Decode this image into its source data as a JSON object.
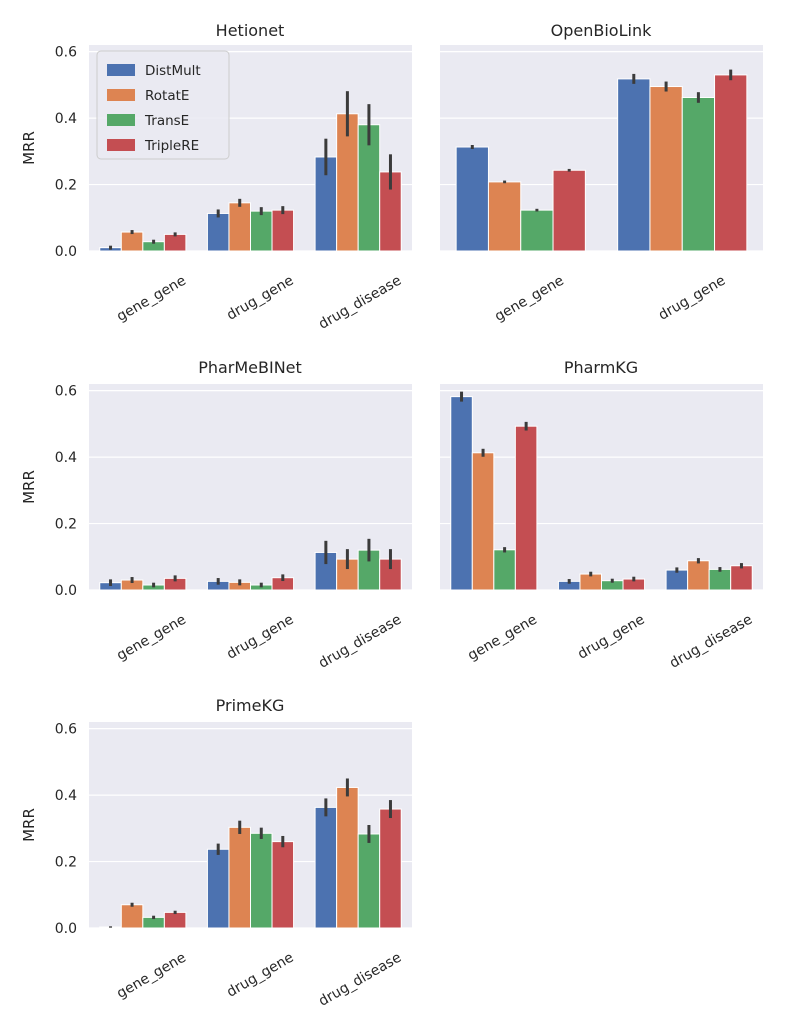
{
  "chart_data": [
    {
      "type": "bar",
      "title": "Hetionet",
      "ylabel": "MRR",
      "ylim": [
        0,
        0.62
      ],
      "yticks": [
        "0.0",
        "0.2",
        "0.4",
        "0.6"
      ],
      "categories": [
        "gene_gene",
        "drug_gene",
        "drug_disease"
      ],
      "legend": "top-left",
      "series": [
        {
          "name": "DistMult",
          "values": [
            0.01,
            0.113,
            0.283
          ],
          "err": [
            0.006,
            0.012,
            0.055
          ]
        },
        {
          "name": "RotatE",
          "values": [
            0.057,
            0.145,
            0.413
          ],
          "err": [
            0.006,
            0.012,
            0.068
          ]
        },
        {
          "name": "TransE",
          "values": [
            0.028,
            0.12,
            0.38
          ],
          "err": [
            0.006,
            0.012,
            0.062
          ]
        },
        {
          "name": "TripleRE",
          "values": [
            0.05,
            0.123,
            0.238
          ],
          "err": [
            0.006,
            0.012,
            0.053
          ]
        }
      ]
    },
    {
      "type": "bar",
      "title": "OpenBioLink",
      "ylabel": "",
      "ylim": [
        0,
        0.62
      ],
      "yticks": [],
      "categories": [
        "gene_gene",
        "drug_gene"
      ],
      "series": [
        {
          "name": "DistMult",
          "values": [
            0.313,
            0.518
          ],
          "err": [
            0.006,
            0.015
          ]
        },
        {
          "name": "RotatE",
          "values": [
            0.208,
            0.495
          ],
          "err": [
            0.004,
            0.015
          ]
        },
        {
          "name": "TransE",
          "values": [
            0.123,
            0.462
          ],
          "err": [
            0.004,
            0.016
          ]
        },
        {
          "name": "TripleRE",
          "values": [
            0.243,
            0.53
          ],
          "err": [
            0.004,
            0.016
          ]
        }
      ]
    },
    {
      "type": "bar",
      "title": "PharMeBINet",
      "ylabel": "MRR",
      "ylim": [
        0,
        0.62
      ],
      "yticks": [
        "0.0",
        "0.2",
        "0.4",
        "0.6"
      ],
      "categories": [
        "gene_gene",
        "drug_gene",
        "drug_disease"
      ],
      "series": [
        {
          "name": "DistMult",
          "values": [
            0.022,
            0.026,
            0.113
          ],
          "err": [
            0.01,
            0.01,
            0.035
          ]
        },
        {
          "name": "RotatE",
          "values": [
            0.03,
            0.023,
            0.093
          ],
          "err": [
            0.009,
            0.009,
            0.03
          ]
        },
        {
          "name": "TransE",
          "values": [
            0.015,
            0.015,
            0.12
          ],
          "err": [
            0.007,
            0.007,
            0.034
          ]
        },
        {
          "name": "TripleRE",
          "values": [
            0.035,
            0.037,
            0.093
          ],
          "err": [
            0.009,
            0.01,
            0.03
          ]
        }
      ]
    },
    {
      "type": "bar",
      "title": "PharmKG",
      "ylabel": "",
      "ylim": [
        0,
        0.62
      ],
      "yticks": [],
      "categories": [
        "gene_gene",
        "drug_gene",
        "drug_disease"
      ],
      "series": [
        {
          "name": "DistMult",
          "values": [
            0.582,
            0.026,
            0.06
          ],
          "err": [
            0.015,
            0.007,
            0.008
          ]
        },
        {
          "name": "RotatE",
          "values": [
            0.413,
            0.048,
            0.088
          ],
          "err": [
            0.012,
            0.007,
            0.008
          ]
        },
        {
          "name": "TransE",
          "values": [
            0.121,
            0.028,
            0.062
          ],
          "err": [
            0.008,
            0.006,
            0.007
          ]
        },
        {
          "name": "TripleRE",
          "values": [
            0.493,
            0.033,
            0.073
          ],
          "err": [
            0.013,
            0.007,
            0.008
          ]
        }
      ]
    },
    {
      "type": "bar",
      "title": "PrimeKG",
      "ylabel": "MRR",
      "ylim": [
        0,
        0.62
      ],
      "yticks": [
        "0.0",
        "0.2",
        "0.4",
        "0.6"
      ],
      "categories": [
        "gene_gene",
        "drug_gene",
        "drug_disease"
      ],
      "series": [
        {
          "name": "DistMult",
          "values": [
            0.003,
            0.237,
            0.363
          ],
          "err": [
            0.002,
            0.017,
            0.027
          ]
        },
        {
          "name": "RotatE",
          "values": [
            0.07,
            0.303,
            0.423
          ],
          "err": [
            0.006,
            0.02,
            0.027
          ]
        },
        {
          "name": "TransE",
          "values": [
            0.032,
            0.285,
            0.283
          ],
          "err": [
            0.005,
            0.017,
            0.027
          ]
        },
        {
          "name": "TripleRE",
          "values": [
            0.047,
            0.26,
            0.358
          ],
          "err": [
            0.005,
            0.017,
            0.027
          ]
        }
      ]
    }
  ],
  "legend": {
    "entries": [
      "DistMult",
      "RotatE",
      "TransE",
      "TripleRE"
    ]
  },
  "colors": {
    "series": [
      "#4c72b0",
      "#dd8452",
      "#55a868",
      "#c44e52"
    ],
    "panel_bg": "#eaeaf2",
    "grid": "#ffffff",
    "errbar": "#3b3b3b"
  }
}
